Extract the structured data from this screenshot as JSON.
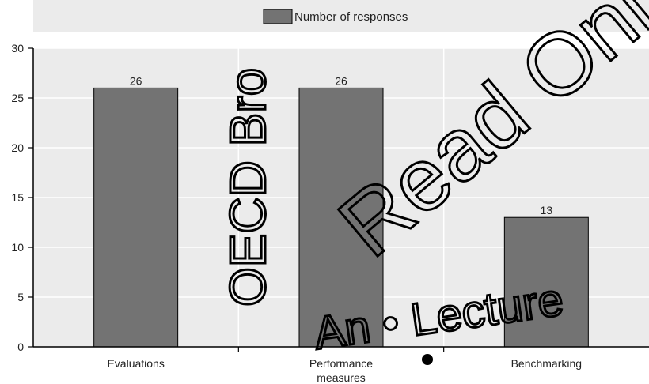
{
  "chart_data": {
    "type": "bar",
    "title": "",
    "xlabel": "",
    "ylabel": "",
    "categories": [
      "Evaluations",
      "Performance measures",
      "Benchmarking"
    ],
    "category_lines": [
      [
        "Evaluations"
      ],
      [
        "Performance",
        "measures"
      ],
      [
        "Benchmarking"
      ]
    ],
    "series": [
      {
        "name": "Number of responses",
        "values": [
          26,
          26,
          13
        ],
        "color": "#737373"
      }
    ],
    "data_labels": [
      "26",
      "26",
      "13"
    ],
    "ylim": [
      0,
      30
    ],
    "yticks": [
      0,
      5,
      10,
      15,
      20,
      25,
      30
    ],
    "ytick_labels": [
      "0",
      "5",
      "10",
      "15",
      "20",
      "25",
      "30"
    ],
    "grid": true,
    "legend_position": "top-center",
    "colors": {
      "bar": "#737373",
      "plot_background": "#ebebeb",
      "legend_background": "#ebebeb",
      "gridline": "#ffffff",
      "axis": "#000000"
    }
  },
  "watermark": {
    "diagonal_text": "Read Only",
    "vertical_text": "OECD Bro",
    "bottom_text": "An • Lecture"
  }
}
